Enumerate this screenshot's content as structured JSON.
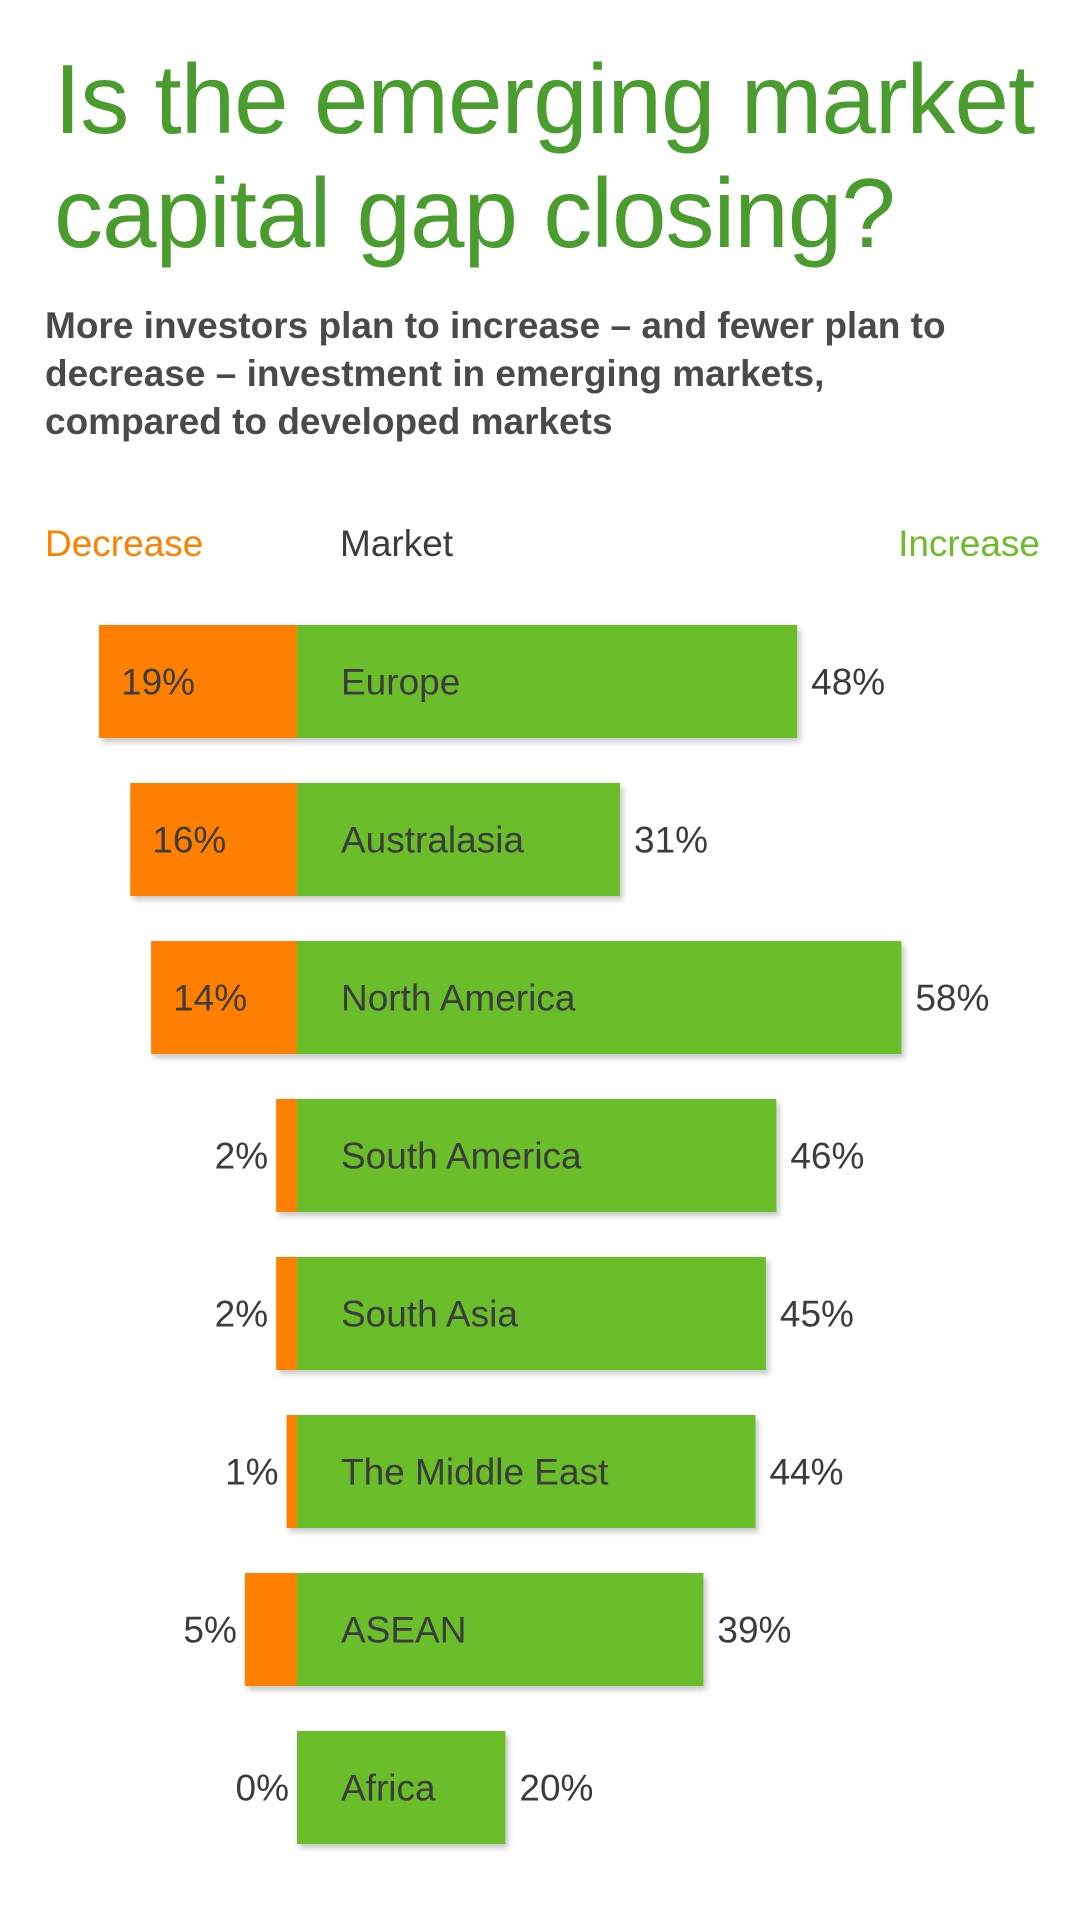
{
  "title": "Is the emerging market capital gap closing?",
  "subtitle": "More investors plan to increase – and fewer plan to decrease – investment in emerging markets, compared to developed markets",
  "headers": {
    "decrease": "Decrease",
    "market": "Market",
    "increase": "Increase"
  },
  "colors": {
    "title": "#4a9c2e",
    "decrease": "#ff8000",
    "increase": "#6bbe2a",
    "text": "#3c3c3c"
  },
  "chart_data": {
    "type": "bar",
    "orientation": "horizontal-diverging",
    "series": [
      {
        "name": "Decrease",
        "values": [
          19,
          16,
          14,
          2,
          2,
          1,
          5,
          0
        ]
      },
      {
        "name": "Increase",
        "values": [
          48,
          31,
          58,
          46,
          45,
          44,
          39,
          20
        ]
      }
    ],
    "categories": [
      "Europe",
      "Australasia",
      "North America",
      "South America",
      "South Asia",
      "The Middle East",
      "ASEAN",
      "Africa"
    ],
    "decrease_labels": [
      "19%",
      "16%",
      "14%",
      "2%",
      "2%",
      "1%",
      "5%",
      "0%"
    ],
    "increase_labels": [
      "48%",
      "31%",
      "58%",
      "46%",
      "45%",
      "44%",
      "39%",
      "20%"
    ],
    "unit": "%",
    "grid": false,
    "legend": "top"
  }
}
